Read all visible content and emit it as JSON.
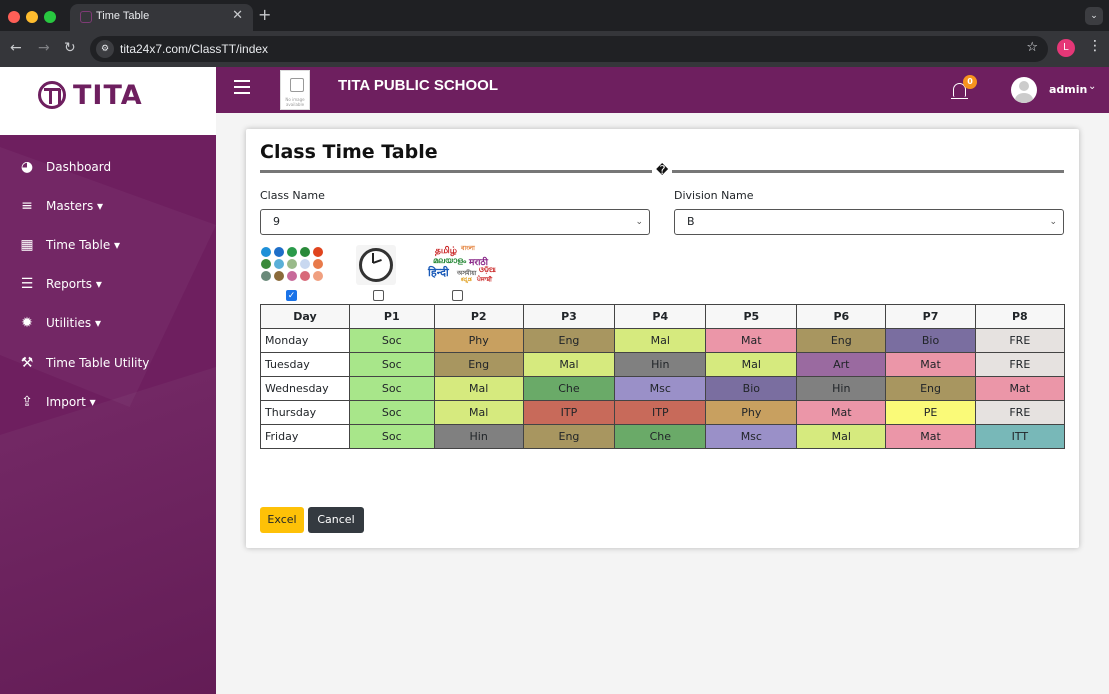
{
  "browser": {
    "tab_title": "Time Table",
    "url": "tita24x7.com/ClassTT/index",
    "profile_initial": "L"
  },
  "app": {
    "logo_text": "TITA",
    "school_name": "TITA PUBLIC SCHOOL",
    "school_image_alt": "No image available",
    "notification_count": "0",
    "user": "admin"
  },
  "sidebar": {
    "items": [
      {
        "label": "Dashboard",
        "icon": "dashboard-icon"
      },
      {
        "label": "Masters ▾",
        "icon": "database-icon"
      },
      {
        "label": "Time Table ▾",
        "icon": "calendar-icon"
      },
      {
        "label": "Reports ▾",
        "icon": "list-icon"
      },
      {
        "label": "Utilities ▾",
        "icon": "gear-icon"
      },
      {
        "label": "Time Table Utility",
        "icon": "wrench-icon"
      },
      {
        "label": "Import ▾",
        "icon": "upload-icon"
      }
    ]
  },
  "page": {
    "title": "Class Time Table",
    "divider_glyph": "�",
    "class_label": "Class Name",
    "class_value": "9",
    "division_label": "Division Name",
    "division_value": "B",
    "options": [
      {
        "name": "color-palette-icon",
        "checked": true
      },
      {
        "name": "clock-icon",
        "checked": false
      },
      {
        "name": "languages-icon",
        "checked": false
      }
    ],
    "excel_label": "Excel",
    "cancel_label": "Cancel"
  },
  "timetable": {
    "headers": [
      "Day",
      "P1",
      "P2",
      "P3",
      "P4",
      "P5",
      "P6",
      "P7",
      "P8"
    ],
    "rows": [
      {
        "day": "Monday",
        "cells": [
          "Soc",
          "Phy",
          "Eng",
          "Mal",
          "Mat",
          "Eng",
          "Bio",
          "FRE"
        ]
      },
      {
        "day": "Tuesday",
        "cells": [
          "Soc",
          "Eng",
          "Mal",
          "Hin",
          "Mal",
          "Art",
          "Mat",
          "FRE"
        ]
      },
      {
        "day": "Wednesday",
        "cells": [
          "Soc",
          "Mal",
          "Che",
          "Msc",
          "Bio",
          "Hin",
          "Eng",
          "Mat"
        ]
      },
      {
        "day": "Thursday",
        "cells": [
          "Soc",
          "Mal",
          "ITP",
          "ITP",
          "Phy",
          "Mat",
          "PE",
          "FRE"
        ]
      },
      {
        "day": "Friday",
        "cells": [
          "Soc",
          "Hin",
          "Eng",
          "Che",
          "Msc",
          "Mal",
          "Mat",
          "ITT"
        ]
      }
    ],
    "subject_colors": {
      "Soc": "#a8e68a",
      "Phy": "#c8a060",
      "Eng": "#a89660",
      "Mal": "#d6ea7e",
      "Mat": "#eb96a8",
      "Bio": "#7a6ea0",
      "FRE": "#e6e2e0",
      "Hin": "#808080",
      "Art": "#9a6aa0",
      "Che": "#6aaa68",
      "Msc": "#9a90c8",
      "ITP": "#c86a5a",
      "PE": "#fafa78",
      "ITT": "#78b8b8"
    }
  },
  "colors": {
    "brand": "#6e1f5f",
    "excel_button": "#fec107",
    "cancel_button": "#343a40",
    "badge": "#f7931e"
  }
}
